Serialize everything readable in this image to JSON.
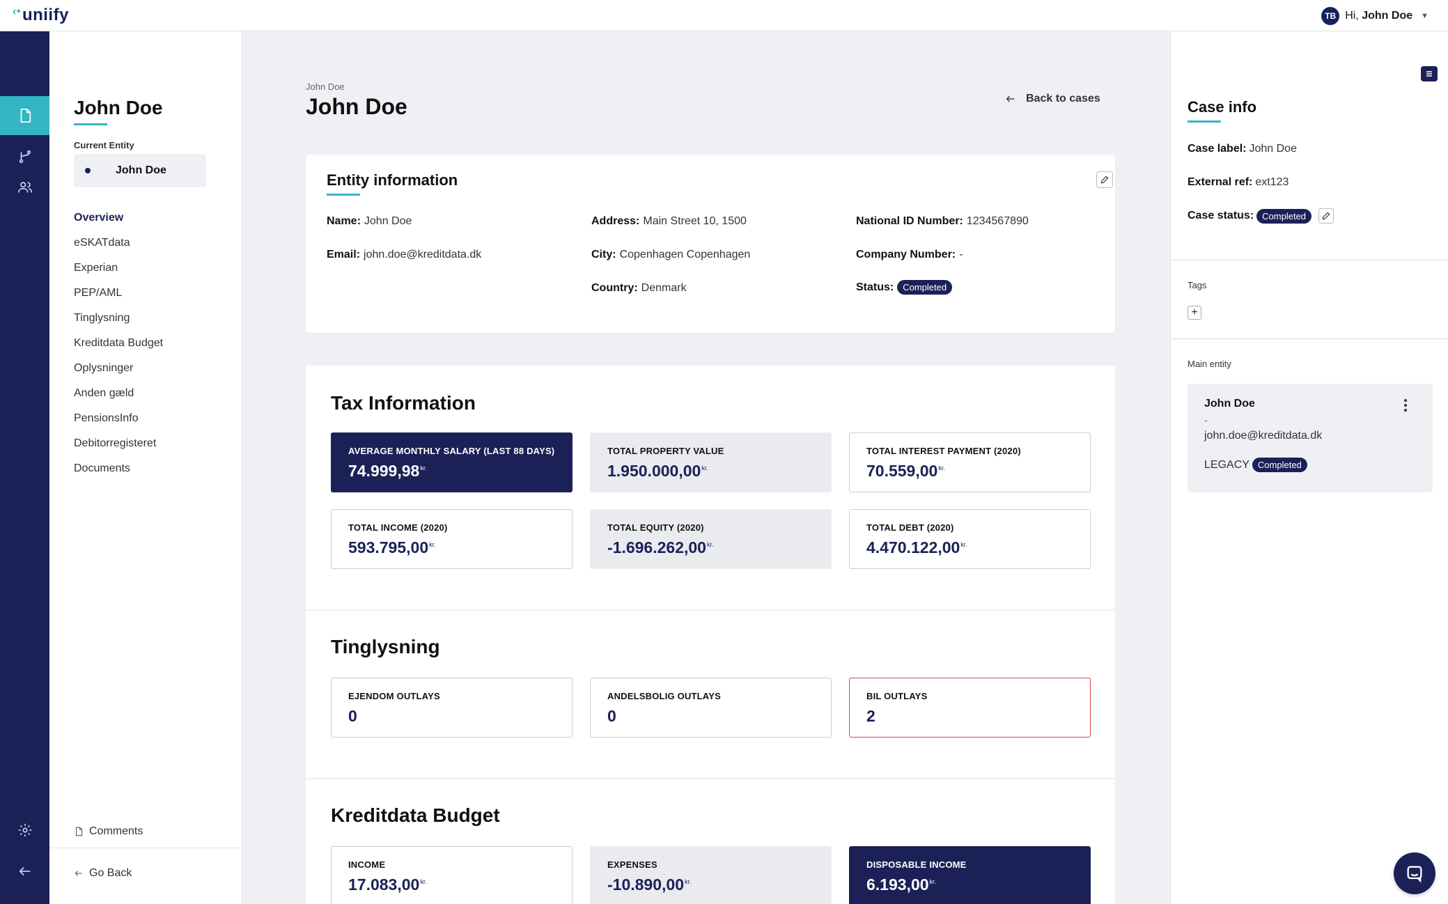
{
  "topbar": {
    "logo": "uniify",
    "user_initials": "TB",
    "greeting": "Hi,",
    "user_name": "John Doe"
  },
  "sidenav": {
    "title": "John Doe",
    "current_entity_label": "Current Entity",
    "current_entity": "John Doe",
    "items": [
      {
        "label": "Overview",
        "active": true
      },
      {
        "label": "eSKATdata"
      },
      {
        "label": "Experian"
      },
      {
        "label": "PEP/AML"
      },
      {
        "label": "Tinglysning"
      },
      {
        "label": "Kreditdata Budget"
      },
      {
        "label": "Oplysninger"
      },
      {
        "label": "Anden gæld"
      },
      {
        "label": "PensionsInfo"
      },
      {
        "label": "Debitorregisteret"
      },
      {
        "label": "Documents"
      }
    ],
    "comments": "Comments",
    "go_back": "Go Back"
  },
  "main": {
    "breadcrumb": "John Doe",
    "title": "John Doe",
    "back_to_cases": "Back to cases",
    "entity": {
      "heading": "Entity information",
      "name_label": "Name:",
      "name": "John Doe",
      "email_label": "Email:",
      "email": "john.doe@kreditdata.dk",
      "address_label": "Address:",
      "address": "Main Street 10, 1500",
      "city_label": "City:",
      "city": "Copenhagen Copenhagen",
      "country_label": "Country:",
      "country": "Denmark",
      "nid_label": "National ID Number:",
      "nid": "1234567890",
      "company_label": "Company Number:",
      "company": "-",
      "status_label": "Status:",
      "status": "Completed"
    },
    "tax": {
      "heading": "Tax Information",
      "currency": "kr.",
      "tiles": [
        {
          "label": "AVERAGE MONTHLY SALARY (LAST 88 DAYS)",
          "value": "74.999,98"
        },
        {
          "label": "TOTAL PROPERTY VALUE",
          "value": "1.950.000,00"
        },
        {
          "label": "TOTAL INTEREST PAYMENT (2020)",
          "value": "70.559,00"
        },
        {
          "label": "TOTAL INCOME (2020)",
          "value": "593.795,00"
        },
        {
          "label": "TOTAL EQUITY (2020)",
          "value": "-1.696.262,00"
        },
        {
          "label": "TOTAL DEBT (2020)",
          "value": "4.470.122,00"
        }
      ]
    },
    "tinglysning": {
      "heading": "Tinglysning",
      "tiles": [
        {
          "label": "EJENDOM OUTLAYS",
          "value": "0"
        },
        {
          "label": "ANDELSBOLIG OUTLAYS",
          "value": "0"
        },
        {
          "label": "BIL OUTLAYS",
          "value": "2"
        }
      ]
    },
    "budget": {
      "heading": "Kreditdata Budget",
      "currency": "kr.",
      "tiles": [
        {
          "label": "INCOME",
          "value": "17.083,00"
        },
        {
          "label": "EXPENSES",
          "value": "-10.890,00"
        },
        {
          "label": "DISPOSABLE INCOME",
          "value": "6.193,00"
        }
      ]
    }
  },
  "case_info": {
    "title": "Case info",
    "label_label": "Case label:",
    "label": "John Doe",
    "ext_label": "External ref:",
    "ext": "ext123",
    "status_label": "Case status:",
    "status": "Completed",
    "tags_label": "Tags",
    "main_entity_label": "Main entity",
    "main_entity": {
      "name": "John Doe",
      "dash": "-",
      "email": "john.doe@kreditdata.dk",
      "legacy": "LEGACY",
      "status": "Completed"
    }
  },
  "icons": {
    "rail": [
      "document-icon",
      "branch-icon",
      "users-icon",
      "settings-icon",
      "arrow-left-icon"
    ],
    "chat": "chat-icon"
  },
  "colors": {
    "navy": "#1b2157",
    "accent": "#34b5c4",
    "alert": "#e0454a"
  }
}
